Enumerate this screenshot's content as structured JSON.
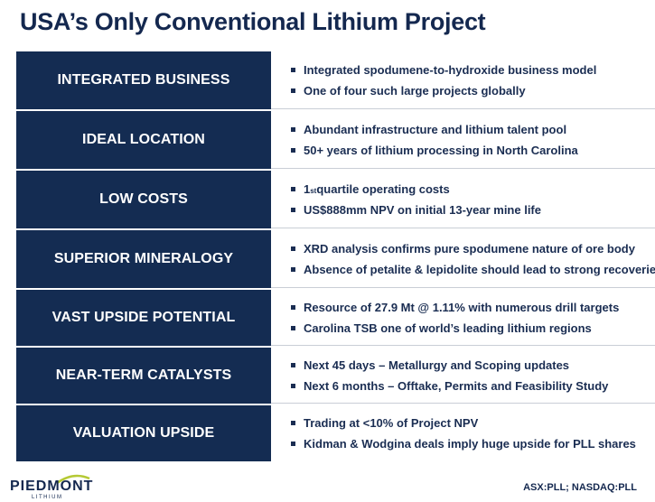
{
  "title": "USA’s Only Conventional Lithium Project",
  "rows": [
    {
      "label": "INTEGRATED BUSINESS",
      "bullets": [
        "Integrated spodumene-to-hydroxide business model",
        "One of four such large projects globally"
      ]
    },
    {
      "label": "IDEAL LOCATION",
      "bullets": [
        "Abundant infrastructure and lithium talent pool",
        "50+ years of lithium processing in North Carolina"
      ]
    },
    {
      "label": "LOW COSTS",
      "bullets": [
        " quartile operating costs",
        "US$888mm NPV on initial 13-year mine life"
      ],
      "first_bullet_prefix": "1",
      "first_bullet_sup": "st"
    },
    {
      "label": "SUPERIOR MINERALOGY",
      "bullets": [
        "XRD analysis confirms pure spodumene nature of ore body",
        "Absence of petalite & lepidolite should lead to strong recoveries"
      ]
    },
    {
      "label": "VAST UPSIDE POTENTIAL",
      "bullets": [
        "Resource of 27.9 Mt @ 1.11% with numerous drill targets",
        "Carolina TSB one of world’s leading lithium regions"
      ]
    },
    {
      "label": "NEAR-TERM CATALYSTS",
      "bullets": [
        "Next 45 days – Metallurgy and Scoping updates",
        "Next 6 months – Offtake, Permits and Feasibility Study"
      ]
    },
    {
      "label": "VALUATION UPSIDE",
      "bullets": [
        "Trading at <10% of Project NPV",
        "Kidman & Wodgina deals imply huge upside for PLL shares"
      ]
    }
  ],
  "logo": {
    "name": "PIEDMONT",
    "sub": "LITHIUM"
  },
  "ticker": "ASX:PLL; NASDAQ:PLL",
  "colors": {
    "navy": "#142c52",
    "accent": "#b5c934"
  }
}
